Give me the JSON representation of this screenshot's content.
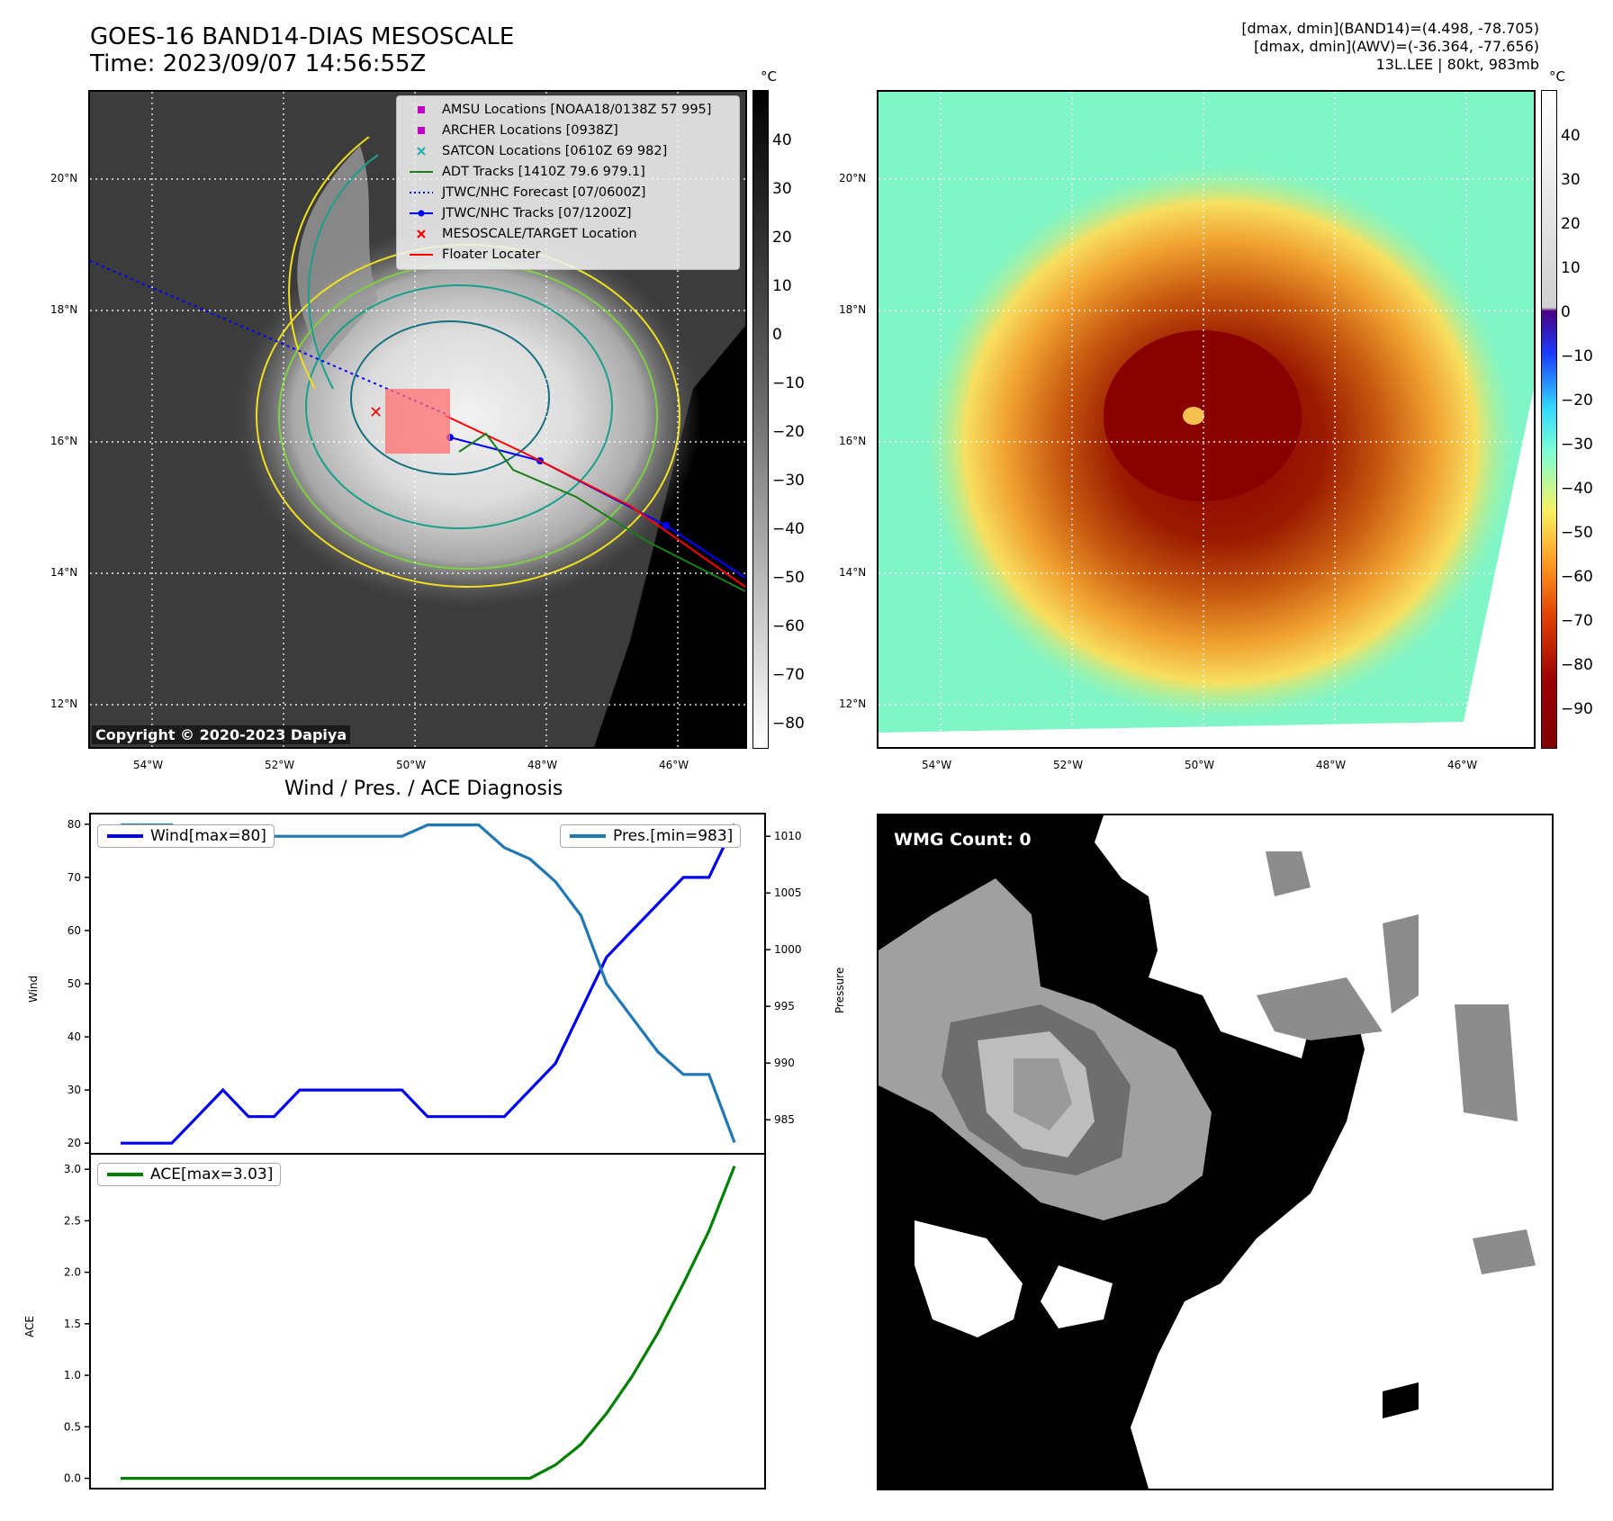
{
  "header": {
    "title_line1": "GOES-16 BAND14-DIAS MESOSCALE",
    "title_line2": "Time: 2023/09/07 14:56:55Z",
    "stats_line1": "[dmax, dmin](BAND14)=(4.498, -78.705)",
    "stats_line2": "[dmax, dmin](AWV)=(-36.364, -77.656)",
    "stats_line3": "13L.LEE | 80kt, 983mb"
  },
  "ir_panel": {
    "copyright": "Copyright © 2020-2023 Dapiya",
    "lat_ticks": [
      "20°N",
      "18°N",
      "16°N",
      "14°N",
      "12°N"
    ],
    "lon_ticks": [
      "54°W",
      "52°W",
      "50°W",
      "48°W",
      "46°W"
    ],
    "legend": [
      {
        "label": "AMSU Locations [NOAA18/0138Z 57 995]",
        "symbol": "square",
        "color": "#c000c0"
      },
      {
        "label": "ARCHER Locations [0938Z]",
        "symbol": "square",
        "color": "#c000c0"
      },
      {
        "label": "SATCON Locations [0610Z 69 982]",
        "symbol": "x",
        "color": "#20b2aa"
      },
      {
        "label": "ADT Tracks [1410Z 79.6 979.1]",
        "symbol": "line",
        "color": "#1a7f1a"
      },
      {
        "label": "JTWC/NHC Forecast [07/0600Z]",
        "symbol": "dotted",
        "color": "#0000ff"
      },
      {
        "label": "JTWC/NHC Tracks [07/1200Z]",
        "symbol": "line-dot",
        "color": "#0000ff"
      },
      {
        "label": "MESOSCALE/TARGET Location",
        "symbol": "x",
        "color": "#ff0000"
      },
      {
        "label": "Floater Locater",
        "symbol": "line",
        "color": "#ff0000"
      }
    ],
    "colorbar_unit": "°C",
    "colorbar_ticks": [
      "40",
      "30",
      "20",
      "10",
      "0",
      "−10",
      "−20",
      "−30",
      "−40",
      "−50",
      "−60",
      "−70",
      "−80"
    ]
  },
  "awv_panel": {
    "lat_ticks": [
      "20°N",
      "18°N",
      "16°N",
      "14°N",
      "12°N"
    ],
    "lon_ticks": [
      "54°W",
      "52°W",
      "50°W",
      "48°W",
      "46°W"
    ],
    "colorbar_unit": "°C",
    "colorbar_ticks": [
      "40",
      "30",
      "20",
      "10",
      "0",
      "−10",
      "−20",
      "−30",
      "−40",
      "−50",
      "−60",
      "−70",
      "−80",
      "−90"
    ]
  },
  "diagnosis": {
    "title": "Wind / Pres. / ACE Diagnosis",
    "wind_label": "Wind",
    "pressure_label": "Pressure",
    "ace_label": "ACE",
    "wind_legend": "Wind[max=80]",
    "pres_legend": "Pres.[min=983]",
    "ace_legend": "ACE[max=3.03]",
    "colors": {
      "wind": "#0000ee",
      "pressure": "#1f77b4",
      "ace": "#008000"
    }
  },
  "wmg": {
    "title": "WMG Count: 0"
  },
  "chart_data": [
    {
      "type": "line",
      "title": "Wind / Pres. / ACE Diagnosis",
      "ylabel": "Wind",
      "ylim": [
        18,
        82
      ],
      "y_ticks": [
        20,
        30,
        40,
        50,
        60,
        70,
        80
      ],
      "series": [
        {
          "name": "Wind[max=80]",
          "values": [
            20,
            20,
            20,
            25,
            30,
            25,
            25,
            30,
            30,
            30,
            30,
            30,
            25,
            25,
            25,
            25,
            30,
            35,
            45,
            55,
            60,
            65,
            70,
            70,
            80
          ]
        }
      ]
    },
    {
      "type": "line",
      "ylabel": "Pressure",
      "ylim": [
        982,
        1012
      ],
      "y_ticks": [
        985,
        990,
        995,
        1000,
        1005,
        1010
      ],
      "series": [
        {
          "name": "Pres.[min=983]",
          "values": [
            1011,
            1011,
            1011,
            1010,
            1010,
            1010,
            1010,
            1010,
            1010,
            1010,
            1010,
            1010,
            1011,
            1011,
            1011,
            1009,
            1008,
            1006,
            1003,
            997,
            994,
            991,
            989,
            989,
            983
          ]
        }
      ]
    },
    {
      "type": "line",
      "ylabel": "ACE",
      "ylim": [
        -0.1,
        3.15
      ],
      "y_ticks": [
        0.0,
        0.5,
        1.0,
        1.5,
        2.0,
        2.5,
        3.0
      ],
      "y_tick_labels": [
        "0.0",
        "0.5",
        "1.0",
        "1.5",
        "2.0",
        "2.5",
        "3.0"
      ],
      "series": [
        {
          "name": "ACE[max=3.03]",
          "values": [
            0,
            0,
            0,
            0,
            0,
            0,
            0,
            0,
            0,
            0,
            0,
            0,
            0,
            0,
            0,
            0,
            0,
            0.13,
            0.33,
            0.63,
            0.99,
            1.41,
            1.89,
            2.4,
            3.03
          ]
        }
      ]
    }
  ]
}
